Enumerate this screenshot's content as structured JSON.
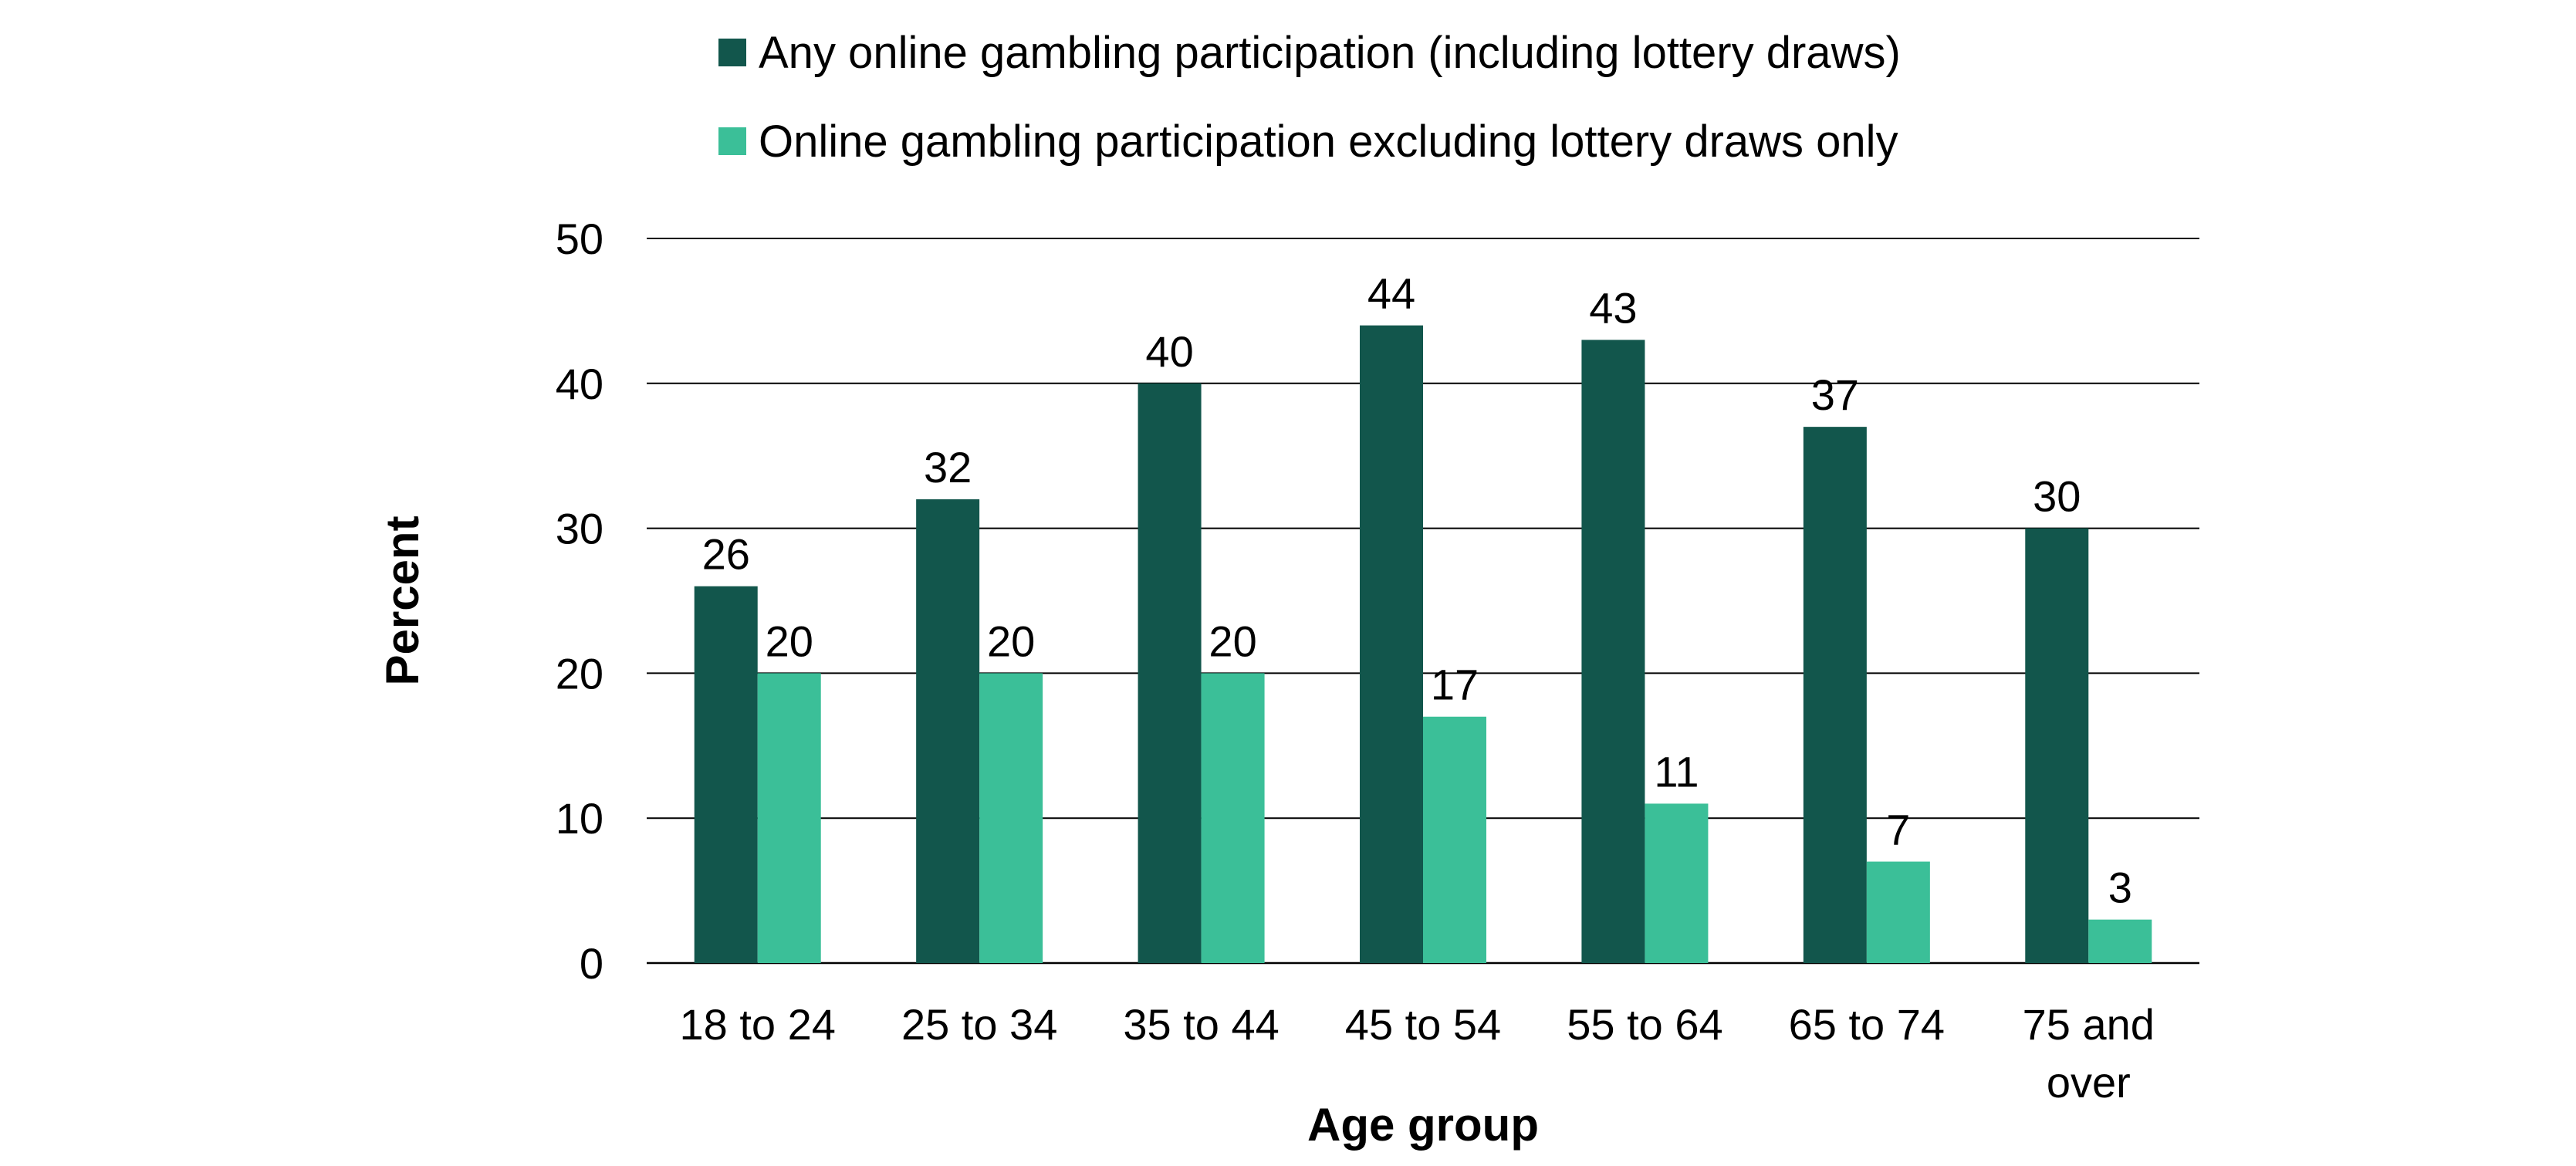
{
  "chart_data": {
    "type": "bar",
    "title": "",
    "xlabel": "Age group",
    "ylabel": "Percent",
    "ylim": [
      0,
      50
    ],
    "yticks": [
      0,
      10,
      20,
      30,
      40,
      50
    ],
    "grid": true,
    "legend_position": "top",
    "categories": [
      [
        "18 to 24"
      ],
      [
        "25 to 34"
      ],
      [
        "35 to 44"
      ],
      [
        "45 to 54"
      ],
      [
        "55 to 64"
      ],
      [
        "65 to 74"
      ],
      [
        "75 and",
        "over"
      ]
    ],
    "series": [
      {
        "name": "Any online gambling participation (including lottery draws)",
        "color": "#12564c",
        "values": [
          26,
          32,
          40,
          44,
          43,
          37,
          30
        ]
      },
      {
        "name": "Online gambling participation excluding lottery draws only",
        "color": "#3bbf98",
        "values": [
          20,
          20,
          20,
          17,
          11,
          7,
          3
        ]
      }
    ]
  }
}
